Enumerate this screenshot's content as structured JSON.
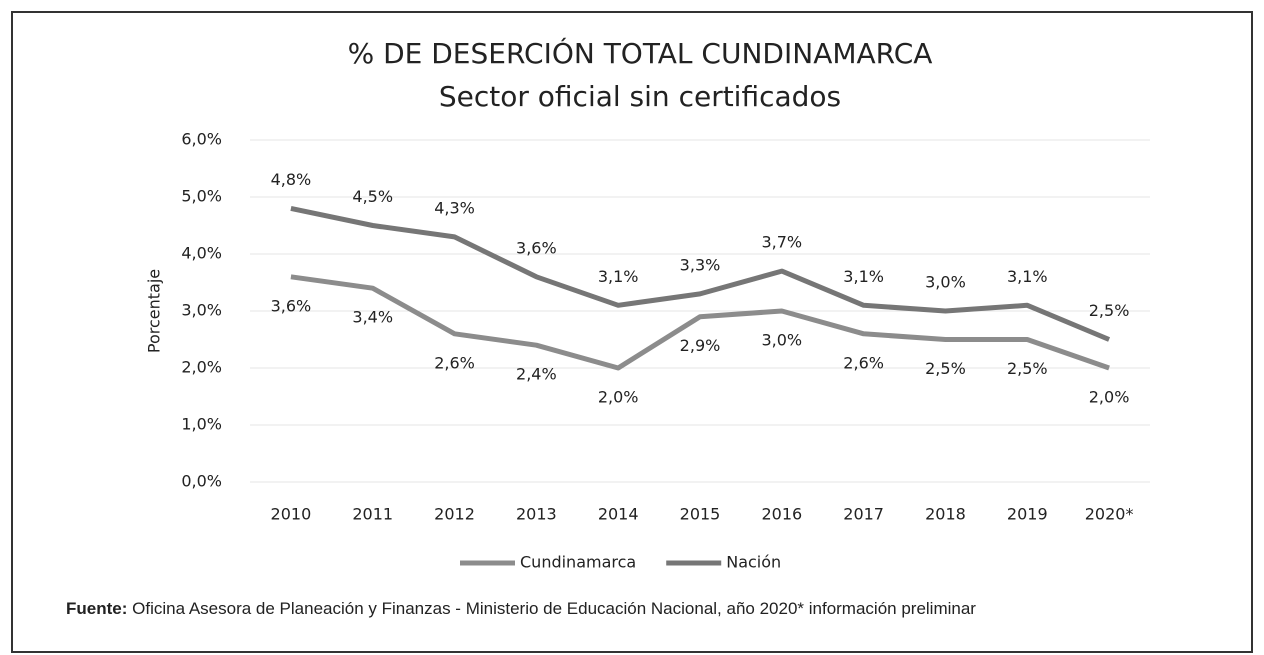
{
  "chart_data": {
    "type": "line",
    "title": "% DE DESERCIÓN TOTAL CUNDINAMARCA",
    "subtitle": "Sector oficial sin certificados",
    "y_label": "Porcentaje",
    "categories": [
      "2010",
      "2011",
      "2012",
      "2013",
      "2014",
      "2015",
      "2016",
      "2017",
      "2018",
      "2019",
      "2020*"
    ],
    "series": [
      {
        "name": "Cundinamarca",
        "color": "#8c8c8c",
        "values": [
          3.6,
          3.4,
          2.6,
          2.4,
          2.0,
          2.9,
          3.0,
          2.6,
          2.5,
          2.5,
          2.0
        ],
        "value_labels": [
          "3,6%",
          "3,4%",
          "2,6%",
          "2,4%",
          "2,0%",
          "2,9%",
          "3,0%",
          "2,6%",
          "2,5%",
          "2,5%",
          "2,0%"
        ]
      },
      {
        "name": "Nación",
        "color": "#767676",
        "values": [
          4.8,
          4.5,
          4.3,
          3.6,
          3.1,
          3.3,
          3.7,
          3.1,
          3.0,
          3.1,
          2.5
        ],
        "value_labels": [
          "4,8%",
          "4,5%",
          "4,3%",
          "3,6%",
          "3,1%",
          "3,3%",
          "3,7%",
          "3,1%",
          "3,0%",
          "3,1%",
          "2,5%"
        ]
      }
    ],
    "ylim": [
      0,
      6
    ],
    "yticks": [
      {
        "value": 0,
        "label": "0,0%"
      },
      {
        "value": 1,
        "label": "1,0%"
      },
      {
        "value": 2,
        "label": "2,0%"
      },
      {
        "value": 3,
        "label": "3,0%"
      },
      {
        "value": 4,
        "label": "4,0%"
      },
      {
        "value": 5,
        "label": "5,0%"
      },
      {
        "value": 6,
        "label": "6,0%"
      }
    ],
    "grid": true,
    "legend": "bottom",
    "source_label": "Fuente:",
    "source_text": "Oficina Asesora de Planeación y Finanzas - Ministerio de Educación Nacional, año 2020* información preliminar"
  }
}
